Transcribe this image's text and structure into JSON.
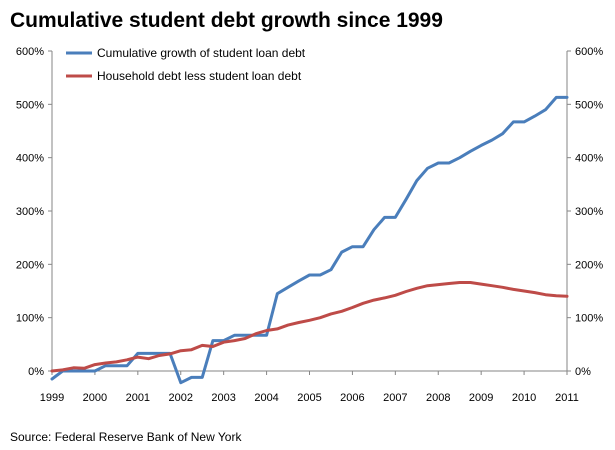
{
  "chart_data": {
    "type": "line",
    "title": "Cumulative student debt growth since 1999",
    "source": "Source: Federal Reserve Bank of New York",
    "xlim": [
      1999,
      2011
    ],
    "ylim": [
      0,
      600
    ],
    "x_ticks": [
      "1999",
      "2000",
      "2001",
      "2002",
      "2003",
      "2004",
      "2005",
      "2006",
      "2007",
      "2008",
      "2009",
      "2010",
      "2011"
    ],
    "y_ticks": [
      "0%",
      "100%",
      "200%",
      "300%",
      "400%",
      "500%",
      "600%"
    ],
    "grid": false,
    "legend_position": "top-left",
    "series": [
      {
        "name": "Cumulative growth of student loan debt",
        "color": "#4a7ebb",
        "x": [
          1999.0,
          1999.25,
          1999.5,
          1999.75,
          2000.0,
          2000.25,
          2000.5,
          2000.75,
          2001.0,
          2001.25,
          2001.5,
          2001.75,
          2002.0,
          2002.25,
          2002.5,
          2002.75,
          2003.0,
          2003.25,
          2003.5,
          2003.75,
          2004.0,
          2004.25,
          2004.5,
          2004.75,
          2005.0,
          2005.25,
          2005.5,
          2005.75,
          2006.0,
          2006.25,
          2006.5,
          2006.75,
          2007.0,
          2007.25,
          2007.5,
          2007.75,
          2008.0,
          2008.25,
          2008.5,
          2008.75,
          2009.0,
          2009.25,
          2009.5,
          2009.75,
          2010.0,
          2010.25,
          2010.5,
          2010.75,
          2011.0
        ],
        "values": [
          -15,
          0,
          0,
          0,
          0,
          10,
          10,
          10,
          33,
          33,
          33,
          33,
          -22,
          -12,
          -12,
          57,
          57,
          67,
          67,
          67,
          67,
          145,
          157,
          169,
          180,
          180,
          190,
          223,
          233,
          233,
          265,
          288,
          288,
          322,
          357,
          380,
          390,
          390,
          400,
          412,
          423,
          433,
          445,
          467,
          467,
          478,
          490,
          513,
          513
        ]
      },
      {
        "name": "Household debt less student loan debt",
        "color": "#be4b48",
        "x": [
          1999.0,
          1999.25,
          1999.5,
          1999.75,
          2000.0,
          2000.25,
          2000.5,
          2000.75,
          2001.0,
          2001.25,
          2001.5,
          2001.75,
          2002.0,
          2002.25,
          2002.5,
          2002.75,
          2003.0,
          2003.25,
          2003.5,
          2003.75,
          2004.0,
          2004.25,
          2004.5,
          2004.75,
          2005.0,
          2005.25,
          2005.5,
          2005.75,
          2006.0,
          2006.25,
          2006.5,
          2006.75,
          2007.0,
          2007.25,
          2007.5,
          2007.75,
          2008.0,
          2008.25,
          2008.5,
          2008.75,
          2009.0,
          2009.25,
          2009.5,
          2009.75,
          2010.0,
          2010.25,
          2010.5,
          2010.75,
          2011.0
        ],
        "values": [
          0,
          2,
          6,
          5,
          12,
          15,
          17,
          21,
          26,
          23,
          29,
          32,
          38,
          40,
          48,
          46,
          54,
          57,
          61,
          70,
          76,
          79,
          86,
          91,
          95,
          100,
          107,
          112,
          119,
          127,
          133,
          137,
          142,
          149,
          155,
          160,
          162,
          164,
          166,
          166,
          163,
          160,
          157,
          153,
          150,
          147,
          143,
          141,
          140
        ]
      }
    ]
  }
}
